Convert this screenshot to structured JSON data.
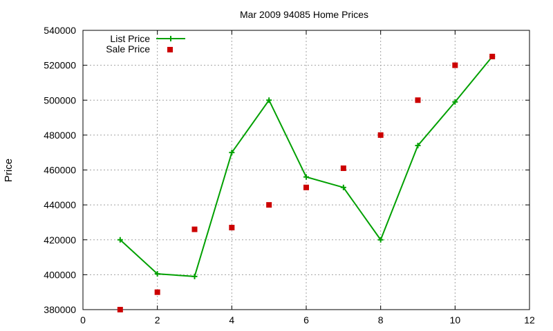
{
  "chart_data": {
    "type": "scatter",
    "title": "Mar 2009 94085 Home Prices",
    "xlabel": "",
    "ylabel": "Price",
    "xlim": [
      0,
      12
    ],
    "ylim": [
      380000,
      540000
    ],
    "x_ticks": [
      0,
      2,
      4,
      6,
      8,
      10,
      12
    ],
    "y_ticks": [
      380000,
      400000,
      420000,
      440000,
      460000,
      480000,
      500000,
      520000,
      540000
    ],
    "grid": true,
    "legend_position": "top-left",
    "series": [
      {
        "name": "List Price",
        "style": "linespoints",
        "marker": "plus",
        "color": "#00a000",
        "points": [
          {
            "x": 1,
            "y": 420000
          },
          {
            "x": 2,
            "y": 400500
          },
          {
            "x": 3,
            "y": 399000
          },
          {
            "x": 4,
            "y": 470000
          },
          {
            "x": 5,
            "y": 500000
          },
          {
            "x": 6,
            "y": 456000
          },
          {
            "x": 7,
            "y": 450000
          },
          {
            "x": 8,
            "y": 420000
          },
          {
            "x": 9,
            "y": 474000
          },
          {
            "x": 10,
            "y": 499000
          },
          {
            "x": 11,
            "y": 525000
          }
        ]
      },
      {
        "name": "Sale Price",
        "style": "points",
        "marker": "square",
        "color": "#cc0000",
        "points": [
          {
            "x": 1,
            "y": 380000
          },
          {
            "x": 2,
            "y": 390000
          },
          {
            "x": 3,
            "y": 426000
          },
          {
            "x": 4,
            "y": 427000
          },
          {
            "x": 5,
            "y": 440000
          },
          {
            "x": 6,
            "y": 450000
          },
          {
            "x": 7,
            "y": 461000
          },
          {
            "x": 8,
            "y": 480000
          },
          {
            "x": 9,
            "y": 500000
          },
          {
            "x": 10,
            "y": 520000
          },
          {
            "x": 11,
            "y": 525000
          }
        ]
      }
    ]
  }
}
